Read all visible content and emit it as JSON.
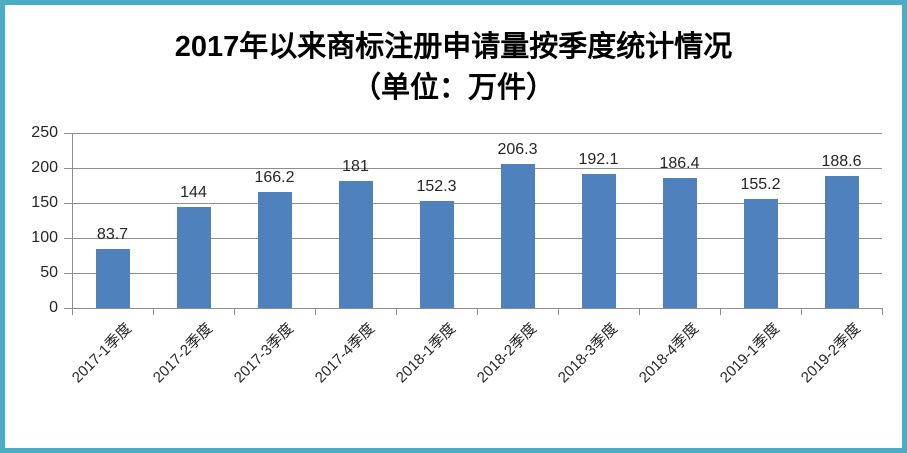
{
  "frame": {
    "border_color": "#4BACC6",
    "background_color": "#FFFFFF"
  },
  "chart_data": {
    "type": "bar",
    "title": "2017年以来商标注册申请量按季度统计情况",
    "subtitle": "（单位：万件）",
    "categories": [
      "2017-1季度",
      "2017-2季度",
      "2017-3季度",
      "2017-4季度",
      "2018-1季度",
      "2018-2季度",
      "2018-3季度",
      "2018-4季度",
      "2019-1季度",
      "2019-2季度"
    ],
    "values": [
      83.7,
      144,
      166.2,
      181,
      152.3,
      206.3,
      192.1,
      186.4,
      155.2,
      188.6
    ],
    "xlabel": "",
    "ylabel": "",
    "ylim": [
      0,
      250
    ],
    "y_ticks": [
      0,
      50,
      100,
      150,
      200,
      250
    ],
    "grid": "horizontal",
    "legend": "none",
    "data_labels": "above-bars",
    "x_label_rotation_deg": 45,
    "bar_color": "#4F81BD",
    "gridline_color": "#8E8E8E",
    "axis_color": "#8E8E8E",
    "label_color": "#262626",
    "title_color": "#000000"
  }
}
